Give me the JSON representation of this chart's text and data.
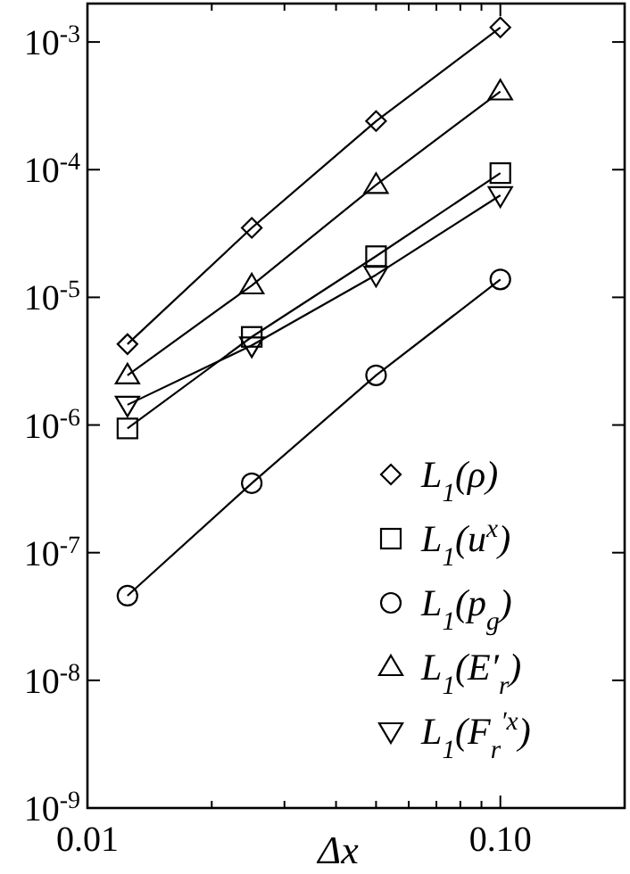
{
  "chart_data": {
    "type": "line",
    "xlabel": "Δx",
    "log": "xy",
    "xlim": [
      0.01,
      0.2
    ],
    "ylim": [
      1e-09,
      0.002
    ],
    "xticks": [
      {
        "value": 0.01,
        "label": "0.01"
      },
      {
        "value": 0.02,
        "label": null
      },
      {
        "value": 0.03,
        "label": null
      },
      {
        "value": 0.04,
        "label": null
      },
      {
        "value": 0.05,
        "label": null
      },
      {
        "value": 0.06,
        "label": null
      },
      {
        "value": 0.07,
        "label": null
      },
      {
        "value": 0.08,
        "label": null
      },
      {
        "value": 0.09,
        "label": null
      },
      {
        "value": 0.1,
        "label": "0.10"
      }
    ],
    "yticks": [
      {
        "value": 1e-09,
        "label": "10$^{-9}$"
      },
      {
        "value": 1e-08,
        "label": "10$^{-8}$"
      },
      {
        "value": 1e-07,
        "label": "10$^{-7}$"
      },
      {
        "value": 1e-06,
        "label": "10$^{-6}$"
      },
      {
        "value": 1e-05,
        "label": "10$^{-5}$"
      },
      {
        "value": 0.0001,
        "label": "10$^{-4}$"
      },
      {
        "value": 0.001,
        "label": "10$^{-3}$"
      }
    ],
    "x": [
      0.0125,
      0.025,
      0.05,
      0.1
    ],
    "grid": false,
    "legend": "bottom right",
    "line_style": "solid",
    "series": [
      {
        "name": "L$_{1}$(ρ)",
        "color": "#000000",
        "marker": "diamond",
        "values": [
          4.3e-06,
          3.5e-05,
          0.00024,
          0.0013
        ]
      },
      {
        "name": "L$_{1}$(u$^{x}$)",
        "color": "#000000",
        "marker": "square",
        "values": [
          9.4e-07,
          4.9e-06,
          2.1e-05,
          9.4e-05
        ]
      },
      {
        "name": "L$_{1}$(p$_{g}$)",
        "color": "#000000",
        "marker": "circle",
        "values": [
          4.6e-08,
          3.5e-07,
          2.45e-06,
          1.38e-05
        ]
      },
      {
        "name": "L$_{1}$(E′$_{r}$)",
        "color": "#000000",
        "marker": "triangle",
        "values": [
          2.45e-06,
          1.24e-05,
          7.6e-05,
          0.00041
        ]
      },
      {
        "name": "L$_{1}$(F$_{r}$$^{′x}$)",
        "color": "#000000",
        "marker": "triangle-down",
        "values": [
          1.44e-06,
          4.2e-06,
          1.5e-05,
          6.3e-05
        ]
      }
    ]
  }
}
